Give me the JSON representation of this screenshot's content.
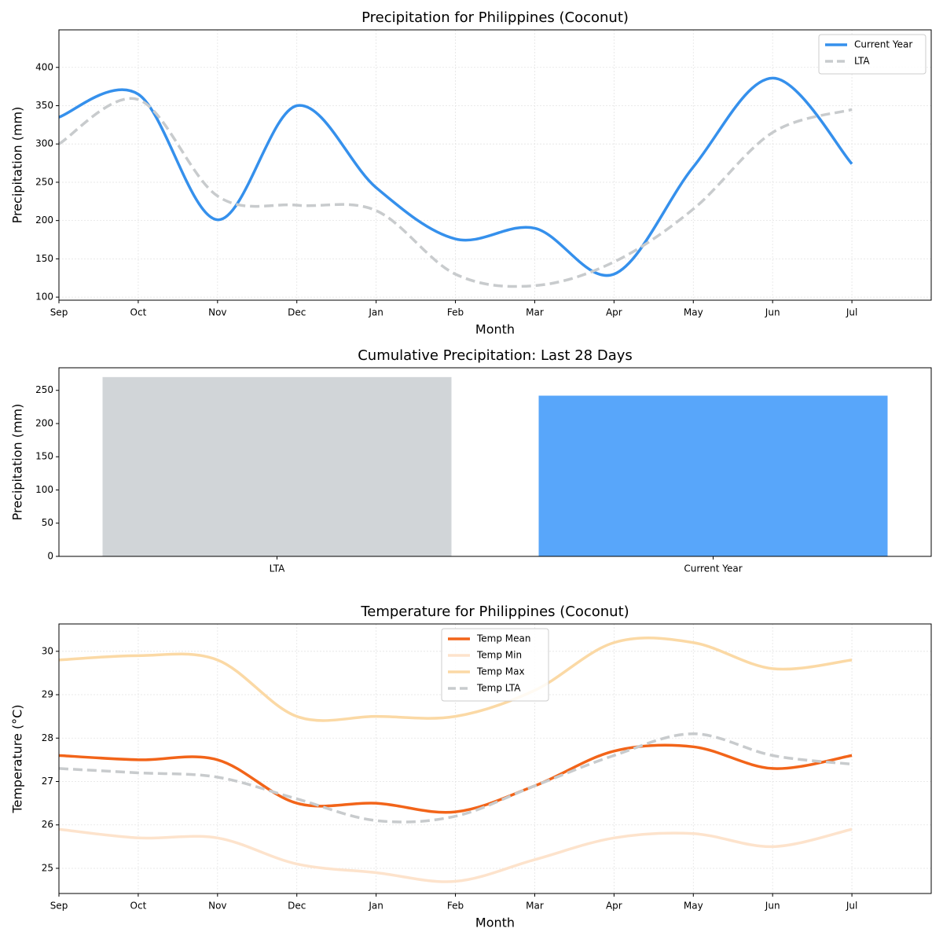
{
  "chart_data": [
    {
      "type": "line",
      "title": "Precipitation for Philippines (Coconut)",
      "xlabel": "Month",
      "ylabel": "Precipitation (mm)",
      "categories": [
        "Sep",
        "Oct",
        "Nov",
        "Dec",
        "Jan",
        "Feb",
        "Mar",
        "Apr",
        "May",
        "Jun",
        "Jul"
      ],
      "series": [
        {
          "name": "Current Year",
          "color": "#3590ec",
          "linestyle": "solid",
          "values": [
            335,
            365,
            201,
            350,
            243,
            176,
            190,
            130,
            270,
            386,
            274
          ]
        },
        {
          "name": "LTA",
          "color": "#c8cbcd",
          "linestyle": "dashed",
          "values": [
            300,
            358,
            232,
            220,
            213,
            130,
            115,
            146,
            215,
            315,
            345
          ]
        }
      ],
      "ylim": [
        96,
        449
      ],
      "yticks": [
        100,
        150,
        200,
        250,
        300,
        350,
        400
      ],
      "grid": true,
      "legend": "upper right"
    },
    {
      "type": "bar",
      "title": "Cumulative Precipitation: Last 28 Days",
      "ylabel": "Precipitation (mm)",
      "categories": [
        "LTA",
        "Current Year"
      ],
      "values": [
        270,
        242
      ],
      "colors": [
        "#d1d5d8",
        "#58a6fa"
      ],
      "ylim": [
        0,
        284
      ],
      "yticks": [
        0,
        50,
        100,
        150,
        200,
        250
      ],
      "grid": false
    },
    {
      "type": "line",
      "title": "Temperature for Philippines (Coconut)",
      "xlabel": "Month",
      "ylabel": "Temperature (°C)",
      "categories": [
        "Sep",
        "Oct",
        "Nov",
        "Dec",
        "Jan",
        "Feb",
        "Mar",
        "Apr",
        "May",
        "Jun",
        "Jul"
      ],
      "series": [
        {
          "name": "Temp Mean",
          "color": "#f26419",
          "linestyle": "solid",
          "values": [
            27.6,
            27.5,
            27.5,
            26.5,
            26.5,
            26.3,
            26.9,
            27.7,
            27.8,
            27.3,
            27.6
          ]
        },
        {
          "name": "Temp Min",
          "color": "#fde3cc",
          "linestyle": "solid",
          "values": [
            25.9,
            25.7,
            25.7,
            25.1,
            24.9,
            24.7,
            25.2,
            25.7,
            25.8,
            25.5,
            25.9
          ]
        },
        {
          "name": "Temp Max",
          "color": "#fbd9a5",
          "linestyle": "solid",
          "values": [
            29.8,
            29.9,
            29.8,
            28.5,
            28.5,
            28.5,
            29.1,
            30.2,
            30.2,
            29.6,
            29.8
          ]
        },
        {
          "name": "Temp LTA",
          "color": "#c8cbcd",
          "linestyle": "dashed",
          "values": [
            27.3,
            27.2,
            27.1,
            26.6,
            26.1,
            26.2,
            26.9,
            27.6,
            28.1,
            27.6,
            27.4
          ]
        }
      ],
      "ylim": [
        24.42,
        30.63
      ],
      "yticks": [
        25,
        26,
        27,
        28,
        29,
        30
      ],
      "grid": true,
      "legend": "upper center"
    }
  ]
}
